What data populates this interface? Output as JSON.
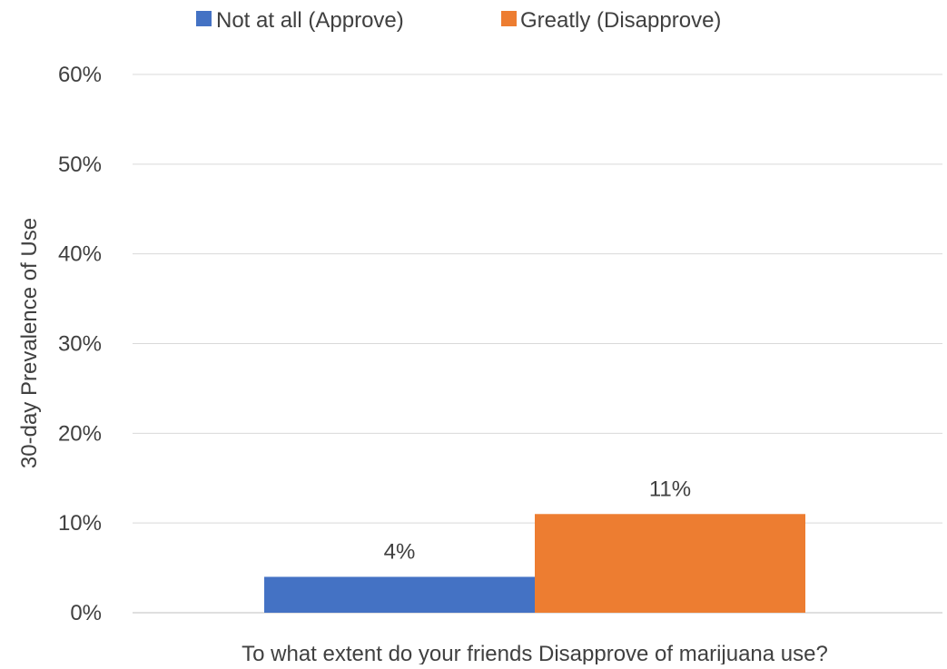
{
  "chart_data": {
    "type": "bar",
    "title": "",
    "xlabel": "To what extent do your friends Disapprove of marijuana use?",
    "ylabel": "30-day Prevalence of Use",
    "categories": [
      ""
    ],
    "series": [
      {
        "name": "Not at all (Approve)",
        "values": [
          4
        ],
        "label": "4%",
        "color": "#4472C4"
      },
      {
        "name": "Greatly (Disapprove)",
        "values": [
          11
        ],
        "label": "11%",
        "color": "#ED7D31"
      }
    ],
    "ylim": [
      0,
      60
    ],
    "yticks": [
      0,
      10,
      20,
      30,
      40,
      50,
      60
    ],
    "ytick_labels": [
      "0%",
      "10%",
      "20%",
      "30%",
      "40%",
      "50%",
      "60%"
    ],
    "grid": true,
    "legend": "top-center"
  }
}
